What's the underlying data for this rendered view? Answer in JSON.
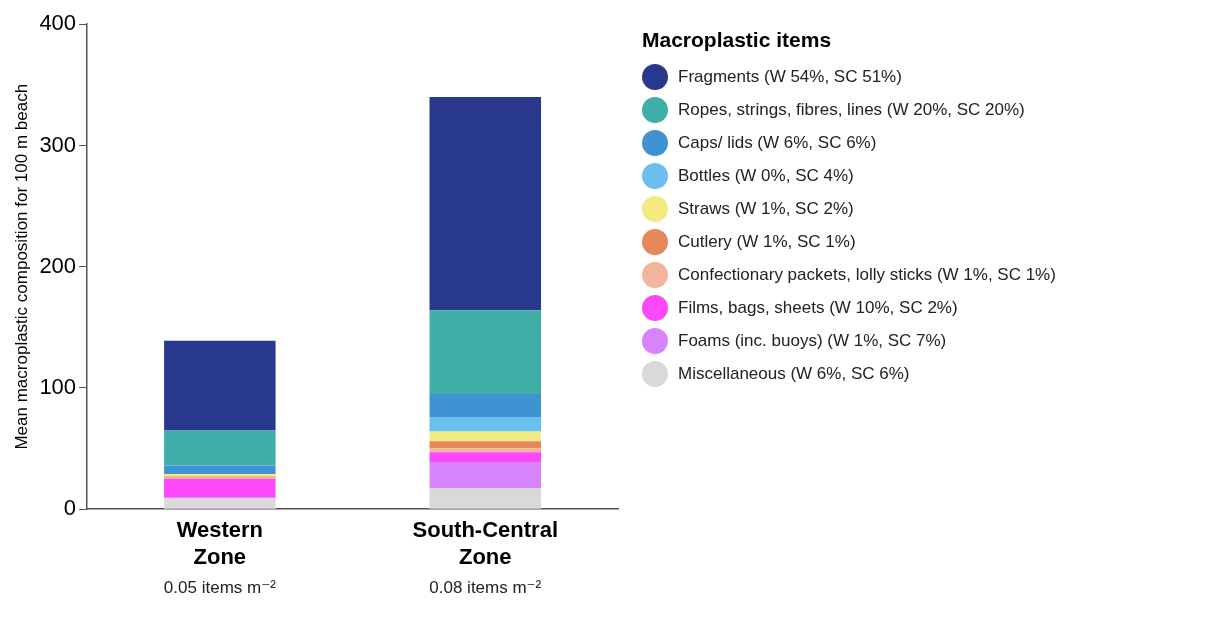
{
  "chart_data": {
    "type": "bar",
    "stacked": true,
    "categories": [
      "Western Zone",
      "South-Central Zone"
    ],
    "ylabel": "Mean macroplastic composition for 100 m beach",
    "ylim": [
      0,
      400
    ],
    "yticks": [
      0,
      100,
      200,
      300,
      400
    ],
    "grid": false,
    "legend": "right",
    "legend_title": "Macroplastic items",
    "annotations": [
      "0.05 items m⁻²",
      "0.08 items m⁻²"
    ],
    "series": [
      {
        "name": "Miscellaneous (W 6%, SC 6%)",
        "color": "#d9d9d9",
        "values": [
          9,
          17
        ]
      },
      {
        "name": "Foams (inc. buoys) (W 1%, SC 7%)",
        "color": "#d683fc",
        "values": [
          1,
          22
        ]
      },
      {
        "name": "Films, bags, sheets (W 10%, SC 2%)",
        "color": "#fc48fa",
        "values": [
          15,
          8
        ]
      },
      {
        "name": "Confectionary packets, lolly sticks (W 1%, SC 1%)",
        "color": "#f2b49a",
        "values": [
          1,
          3
        ]
      },
      {
        "name": "Cutlery (W 1%, SC 1%)",
        "color": "#e8865c",
        "values": [
          1,
          6
        ]
      },
      {
        "name": "Straws (W 1%, SC 2%)",
        "color": "#f3ea82",
        "values": [
          2,
          8
        ]
      },
      {
        "name": "Bottles (W 0%, SC 4%)",
        "color": "#69c0ec",
        "values": [
          0,
          12
        ]
      },
      {
        "name": "Caps/ lids (W 6%, SC 6%)",
        "color": "#3f93d2",
        "values": [
          7,
          19
        ]
      },
      {
        "name": "Ropes, strings, fibres, lines (W 20%, SC 20%)",
        "color": "#3fada8",
        "values": [
          29,
          69
        ]
      },
      {
        "name": "Fragments (W 54%, SC 51%)",
        "color": "#28388c",
        "values": [
          74,
          176
        ]
      }
    ]
  }
}
